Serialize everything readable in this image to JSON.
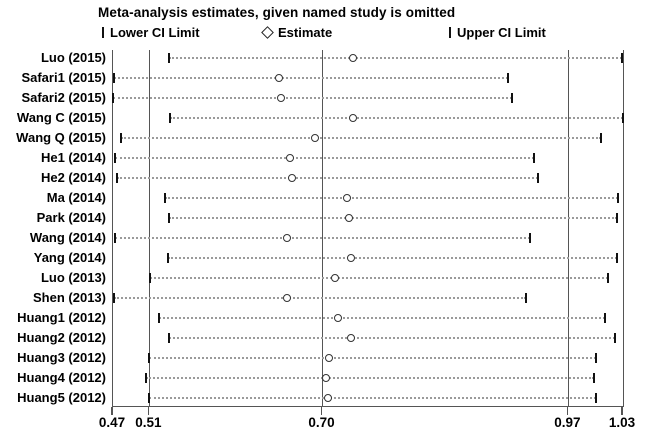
{
  "title": "Meta-analysis estimates, given named study is omitted",
  "legend": {
    "lower": {
      "label": "Lower CI Limit"
    },
    "estimate": {
      "label": "Estimate"
    },
    "upper": {
      "label": "Upper CI Limit"
    }
  },
  "colors": {
    "frame_line": "#555555",
    "dotted_ci": "#9a9a9a",
    "tick": "#111111",
    "marker_border": "#333333",
    "text": "#000000",
    "background": "#ffffff"
  },
  "chart_data": {
    "type": "scatter",
    "subtype": "leave-one-out-sensitivity-forest",
    "title": "Meta-analysis estimates, given named study is omitted",
    "xlabel": "",
    "ylabel": "",
    "xlim": [
      0.47,
      1.03
    ],
    "xticks": [
      0.47,
      0.51,
      0.7,
      0.97,
      1.03
    ],
    "ref_lines": [
      0.51,
      0.7,
      0.97
    ],
    "grid": false,
    "legend_position": "top",
    "studies": [
      {
        "label": "Luo (2015)",
        "lower": 0.532,
        "estimate": 0.734,
        "upper": 1.029
      },
      {
        "label": "Safari1 (2015)",
        "lower": 0.471,
        "estimate": 0.653,
        "upper": 0.904
      },
      {
        "label": "Safari2 (2015)",
        "lower": 0.47,
        "estimate": 0.655,
        "upper": 0.908
      },
      {
        "label": "Wang C (2015)",
        "lower": 0.533,
        "estimate": 0.734,
        "upper": 1.03
      },
      {
        "label": "Wang Q (2015)",
        "lower": 0.479,
        "estimate": 0.692,
        "upper": 1.006
      },
      {
        "label": "He1 (2014)",
        "lower": 0.472,
        "estimate": 0.665,
        "upper": 0.932
      },
      {
        "label": "He2 (2014)",
        "lower": 0.474,
        "estimate": 0.667,
        "upper": 0.937
      },
      {
        "label": "Ma (2014)",
        "lower": 0.527,
        "estimate": 0.727,
        "upper": 1.025
      },
      {
        "label": "Park (2014)",
        "lower": 0.532,
        "estimate": 0.73,
        "upper": 1.023
      },
      {
        "label": "Wang (2014)",
        "lower": 0.472,
        "estimate": 0.662,
        "upper": 0.928
      },
      {
        "label": "Yang (2014)",
        "lower": 0.53,
        "estimate": 0.732,
        "upper": 1.023
      },
      {
        "label": "Luo (2013)",
        "lower": 0.511,
        "estimate": 0.714,
        "upper": 1.014
      },
      {
        "label": "Shen (2013)",
        "lower": 0.471,
        "estimate": 0.661,
        "upper": 0.923
      },
      {
        "label": "Huang1 (2012)",
        "lower": 0.521,
        "estimate": 0.718,
        "upper": 1.01
      },
      {
        "label": "Huang2 (2012)",
        "lower": 0.532,
        "estimate": 0.732,
        "upper": 1.021
      },
      {
        "label": "Huang3 (2012)",
        "lower": 0.51,
        "estimate": 0.708,
        "upper": 1.0
      },
      {
        "label": "Huang4 (2012)",
        "lower": 0.506,
        "estimate": 0.704,
        "upper": 0.998
      },
      {
        "label": "Huang5 (2012)",
        "lower": 0.509,
        "estimate": 0.707,
        "upper": 1.0
      }
    ]
  }
}
